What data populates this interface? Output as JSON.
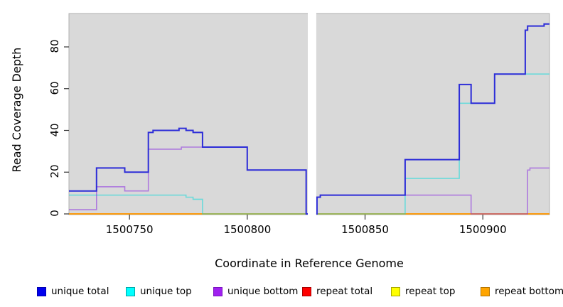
{
  "chart_data": {
    "type": "line",
    "subtype": "step-coverage",
    "title": "",
    "xlabel": "Coordinate in Reference Genome",
    "ylabel": "Read Coverage Depth",
    "x_ticks": [
      "1500750",
      "1500800",
      "1500850",
      "1500900"
    ],
    "x_tick_values": [
      1500750,
      1500800,
      1500850,
      1500900
    ],
    "y_ticks": [
      "0",
      "20",
      "40",
      "60",
      "80"
    ],
    "y_tick_values": [
      0,
      20,
      40,
      60,
      80
    ],
    "xlim": [
      1500724.3,
      1500928.3
    ],
    "ylim": [
      0,
      96
    ],
    "plot_bg": "#d9d9d9",
    "plot_border": "#b0b0b0",
    "grid": false,
    "legend_position": "bottom",
    "gap_region": {
      "from": 1500825.7,
      "to": 1500829.3,
      "color": "#ffffff"
    },
    "series": [
      {
        "name": "repeat total",
        "color": "#e60000",
        "opacity": 1,
        "width": 1.5,
        "steps": [
          [
            1500724.3,
            0
          ]
        ]
      },
      {
        "name": "repeat top",
        "color": "#ffff00",
        "opacity": 1,
        "width": 1.5,
        "steps": [
          [
            1500724.3,
            0
          ]
        ]
      },
      {
        "name": "repeat bottom",
        "color": "#ff9100",
        "opacity": 1,
        "width": 1.6,
        "steps": [
          [
            1500724.3,
            0
          ]
        ]
      },
      {
        "name": "unique top",
        "color": "#00dcdc",
        "opacity": 0.5,
        "width": 1.6,
        "steps": [
          [
            1500724.3,
            9
          ],
          [
            1500774,
            8
          ],
          [
            1500777,
            7
          ],
          [
            1500781,
            0
          ],
          [
            1500867,
            17
          ],
          [
            1500890,
            53
          ],
          [
            1500905,
            67
          ]
        ]
      },
      {
        "name": "unique bottom",
        "color": "#8a2be2",
        "opacity": 0.55,
        "width": 1.6,
        "steps": [
          [
            1500724.3,
            2
          ],
          [
            1500736,
            13
          ],
          [
            1500748,
            11
          ],
          [
            1500758,
            31
          ],
          [
            1500772,
            32
          ],
          [
            1500800,
            21
          ],
          [
            1500825,
            0
          ],
          [
            1500829.6,
            8
          ],
          [
            1500831,
            9
          ],
          [
            1500895,
            0
          ],
          [
            1500919,
            21
          ],
          [
            1500920,
            22
          ]
        ]
      },
      {
        "name": "unique total",
        "color": "#2d2dd8",
        "opacity": 1,
        "width": 2,
        "steps": [
          [
            1500724.3,
            11
          ],
          [
            1500736,
            22
          ],
          [
            1500748,
            20
          ],
          [
            1500758,
            39
          ],
          [
            1500760,
            40
          ],
          [
            1500771,
            41
          ],
          [
            1500774,
            40
          ],
          [
            1500777,
            39
          ],
          [
            1500781,
            32
          ],
          [
            1500800,
            21
          ],
          [
            1500825,
            0
          ],
          [
            1500829.6,
            8
          ],
          [
            1500831,
            9
          ],
          [
            1500867,
            26
          ],
          [
            1500890,
            62
          ],
          [
            1500895,
            53
          ],
          [
            1500905,
            67
          ],
          [
            1500918,
            88
          ],
          [
            1500919,
            90
          ],
          [
            1500926,
            91
          ]
        ]
      }
    ]
  },
  "legend": {
    "items": [
      {
        "label": "unique total",
        "fill": "#0000ee",
        "border": "#0000b0"
      },
      {
        "label": "unique top",
        "fill": "#00ffff",
        "border": "#00a8a8"
      },
      {
        "label": "unique bottom",
        "fill": "#a020f0",
        "border": "#7a12c0"
      },
      {
        "label": "repeat total",
        "fill": "#ff0000",
        "border": "#a80000"
      },
      {
        "label": "repeat top",
        "fill": "#ffff00",
        "border": "#a8a800"
      },
      {
        "label": "repeat bottom",
        "fill": "#ffa500",
        "border": "#b37400"
      }
    ]
  }
}
